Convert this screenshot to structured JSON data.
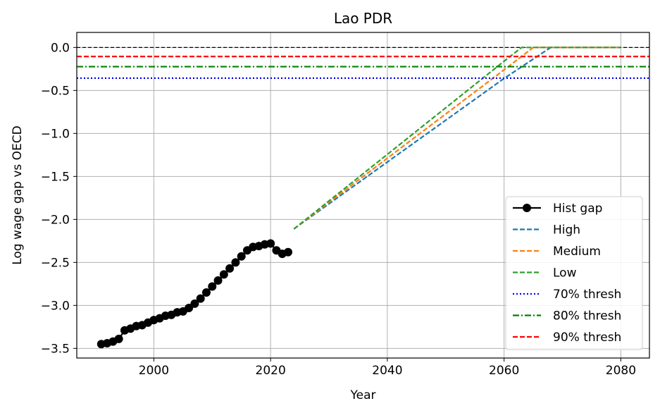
{
  "chart_data": {
    "type": "line",
    "title": "Lao PDR",
    "xlabel": "Year",
    "ylabel": "Log wage gap vs OECD",
    "xlim": [
      1986.8,
      2084.9
    ],
    "ylim": [
      -3.612,
      0.175
    ],
    "xticks": [
      2000,
      2020,
      2040,
      2060,
      2080
    ],
    "yticks": [
      0.0,
      -0.5,
      -1.0,
      -1.5,
      -2.0,
      -2.5,
      -3.0,
      -3.5
    ],
    "xtick_labels": [
      "2000",
      "2020",
      "2040",
      "2060",
      "2080"
    ],
    "ytick_labels": [
      "0.0",
      "−0.5",
      "−1.0",
      "−1.5",
      "−2.0",
      "−2.5",
      "−3.0",
      "−3.5"
    ],
    "grid": true,
    "legend_position": "lower-right",
    "reference_line": {
      "y": 0.0,
      "color": "#000000"
    },
    "series": [
      {
        "name": "Hist gap",
        "style": "solid-marker",
        "color": "#000000",
        "x": [
          1991,
          1992,
          1993,
          1994,
          1995,
          1996,
          1997,
          1998,
          1999,
          2000,
          2001,
          2002,
          2003,
          2004,
          2005,
          2006,
          2007,
          2008,
          2009,
          2010,
          2011,
          2012,
          2013,
          2014,
          2015,
          2016,
          2017,
          2018,
          2019,
          2020,
          2021,
          2022,
          2023
        ],
        "y": [
          -3.45,
          -3.44,
          -3.42,
          -3.39,
          -3.29,
          -3.27,
          -3.24,
          -3.23,
          -3.2,
          -3.17,
          -3.15,
          -3.12,
          -3.11,
          -3.08,
          -3.07,
          -3.03,
          -2.98,
          -2.92,
          -2.85,
          -2.78,
          -2.71,
          -2.64,
          -2.57,
          -2.5,
          -2.43,
          -2.36,
          -2.32,
          -2.31,
          -2.29,
          -2.28,
          -2.36,
          -2.4,
          -2.38
        ]
      },
      {
        "name": "High",
        "style": "dashed",
        "color": "#1f77b4",
        "x": [
          2024,
          2060,
          2068,
          2080
        ],
        "y": [
          -2.11,
          -0.36,
          0.0,
          0.0
        ]
      },
      {
        "name": "Medium",
        "style": "dashed",
        "color": "#ff7f0e",
        "x": [
          2024,
          2060,
          2065,
          2080
        ],
        "y": [
          -2.11,
          -0.26,
          0.0,
          0.0
        ]
      },
      {
        "name": "Low",
        "style": "dashed",
        "color": "#2ca02c",
        "x": [
          2024,
          2060,
          2063,
          2080
        ],
        "y": [
          -2.11,
          -0.16,
          0.0,
          0.0
        ]
      },
      {
        "name": "70% thresh",
        "style": "dotted",
        "color": "#0000ff",
        "y_const": -0.357
      },
      {
        "name": "80% thresh",
        "style": "dashdot",
        "color": "#008000",
        "y_const": -0.223
      },
      {
        "name": "90% thresh",
        "style": "dashed",
        "color": "#ff0000",
        "y_const": -0.105
      }
    ]
  }
}
